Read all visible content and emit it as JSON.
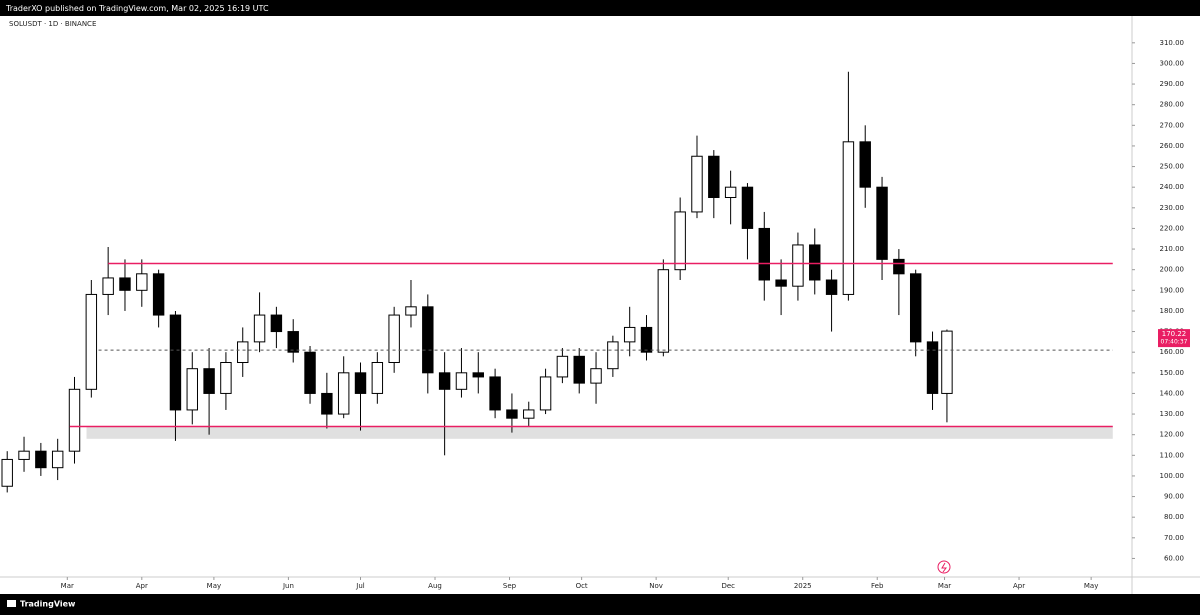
{
  "header": "TraderXO published on TradingView.com, Mar 02, 2025 16:19 UTC",
  "footer": "TradingView",
  "chart_data": {
    "type": "candlestick",
    "symbol": "SOLUSDT · 1D · BINANCE",
    "x": [
      -25,
      -18,
      -11,
      -4,
      3,
      10,
      17,
      24,
      31,
      38,
      45,
      52,
      59,
      66,
      73,
      80,
      87,
      94,
      101,
      108,
      115,
      122,
      129,
      136,
      143,
      150,
      157,
      164,
      171,
      178,
      185,
      192,
      199,
      206,
      213,
      220,
      227,
      234,
      241,
      248,
      255,
      262,
      269,
      276,
      283,
      290,
      297,
      304,
      311,
      318,
      325,
      332,
      339,
      346,
      353,
      360,
      366
    ],
    "open": [
      95,
      108,
      112,
      104,
      112,
      142,
      188,
      196,
      190,
      198,
      178,
      132,
      152,
      140,
      155,
      165,
      178,
      170,
      160,
      140,
      130,
      150,
      140,
      155,
      178,
      182,
      150,
      142,
      150,
      148,
      132,
      128,
      132,
      148,
      158,
      145,
      152,
      165,
      172,
      160,
      200,
      228,
      255,
      235,
      240,
      220,
      195,
      192,
      212,
      195,
      188,
      262,
      240,
      205,
      198,
      165,
      140
    ],
    "high": [
      112,
      119,
      116,
      118,
      148,
      195,
      211,
      205,
      205,
      200,
      180,
      160,
      162,
      160,
      172,
      189,
      182,
      176,
      163,
      150,
      158,
      155,
      160,
      182,
      195,
      188,
      160,
      162,
      160,
      152,
      140,
      136,
      152,
      162,
      162,
      160,
      168,
      182,
      178,
      205,
      235,
      265,
      258,
      248,
      242,
      228,
      205,
      218,
      220,
      200,
      296,
      270,
      245,
      210,
      200,
      170,
      171
    ],
    "low": [
      92,
      102,
      100,
      98,
      106,
      138,
      178,
      180,
      182,
      172,
      117,
      125,
      120,
      132,
      148,
      160,
      162,
      155,
      135,
      123,
      128,
      122,
      135,
      150,
      172,
      140,
      110,
      138,
      140,
      128,
      121,
      124,
      130,
      145,
      140,
      135,
      148,
      158,
      156,
      158,
      195,
      225,
      225,
      222,
      205,
      185,
      178,
      185,
      188,
      170,
      185,
      230,
      195,
      178,
      158,
      132,
      126
    ],
    "close": [
      108,
      112,
      104,
      112,
      142,
      188,
      196,
      190,
      198,
      178,
      132,
      152,
      140,
      155,
      165,
      178,
      170,
      160,
      140,
      130,
      150,
      140,
      155,
      178,
      182,
      150,
      142,
      150,
      148,
      132,
      128,
      132,
      148,
      158,
      145,
      152,
      165,
      172,
      160,
      200,
      228,
      255,
      235,
      240,
      220,
      195,
      192,
      212,
      195,
      188,
      262,
      240,
      205,
      198,
      165,
      140,
      170.22
    ],
    "up_color": "#ffffff",
    "down_color": "#000000",
    "wick_color": "#000000",
    "xlim": [
      -28,
      443
    ],
    "xticks": [
      {
        "value": 0,
        "label": "Mar"
      },
      {
        "value": 31,
        "label": "Apr"
      },
      {
        "value": 61,
        "label": "May"
      },
      {
        "value": 92,
        "label": "Jun"
      },
      {
        "value": 122,
        "label": "Jul"
      },
      {
        "value": 153,
        "label": "Aug"
      },
      {
        "value": 184,
        "label": "Sep"
      },
      {
        "value": 214,
        "label": "Oct"
      },
      {
        "value": 245,
        "label": "Nov"
      },
      {
        "value": 275,
        "label": "Dec"
      },
      {
        "value": 306,
        "label": "2025"
      },
      {
        "value": 337,
        "label": "Feb"
      },
      {
        "value": 365,
        "label": "Mar"
      },
      {
        "value": 396,
        "label": "Apr"
      },
      {
        "value": 426,
        "label": "May"
      }
    ],
    "ylim": [
      51,
      323
    ],
    "yticks": [
      {
        "value": 60,
        "label": "60.00"
      },
      {
        "value": 70,
        "label": "70.00"
      },
      {
        "value": 80,
        "label": "80.00"
      },
      {
        "value": 90,
        "label": "90.00"
      },
      {
        "value": 100,
        "label": "100.00"
      },
      {
        "value": 110,
        "label": "110.00"
      },
      {
        "value": 120,
        "label": "120.00"
      },
      {
        "value": 130,
        "label": "130.00"
      },
      {
        "value": 140,
        "label": "140.00"
      },
      {
        "value": 150,
        "label": "150.00"
      },
      {
        "value": 160,
        "label": "160.00"
      },
      {
        "value": 170,
        "label": "170.00"
      },
      {
        "value": 180,
        "label": "180.00"
      },
      {
        "value": 190,
        "label": "190.00"
      },
      {
        "value": 200,
        "label": "200.00"
      },
      {
        "value": 210,
        "label": "210.00"
      },
      {
        "value": 220,
        "label": "220.00"
      },
      {
        "value": 230,
        "label": "230.00"
      },
      {
        "value": 240,
        "label": "240.00"
      },
      {
        "value": 250,
        "label": "250.00"
      },
      {
        "value": 260,
        "label": "260.00"
      },
      {
        "value": 270,
        "label": "270.00"
      },
      {
        "value": 280,
        "label": "280.00"
      },
      {
        "value": 290,
        "label": "290.00"
      },
      {
        "value": 300,
        "label": "300.00"
      },
      {
        "value": 310,
        "label": "310.00"
      }
    ],
    "levels": [
      {
        "value": 203,
        "start": 17,
        "end": 435,
        "color": "#e91e63",
        "dashed": false
      },
      {
        "value": 124,
        "start": 1,
        "end": 435,
        "color": "#e91e63",
        "dashed": false
      },
      {
        "value": 161,
        "start": 13,
        "end": 435,
        "color": "#555555",
        "dashed": true
      }
    ],
    "zone": {
      "low": 118,
      "high": 124,
      "start": 8,
      "end": 435,
      "color": "#e0e0e0"
    },
    "last_price": {
      "value": 170.22,
      "countdown": "07:40:37",
      "color": "#e91e63"
    }
  }
}
